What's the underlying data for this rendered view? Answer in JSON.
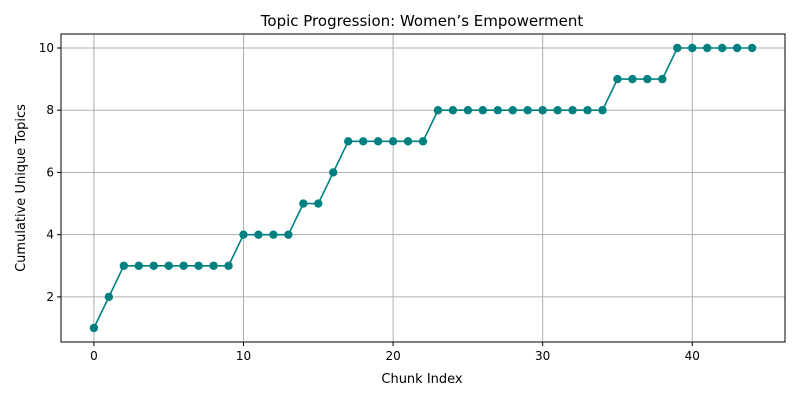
{
  "chart_data": {
    "type": "line",
    "title": "Topic Progression: Women’s Empowerment",
    "xlabel": "Chunk Index",
    "ylabel": "Cumulative Unique Topics",
    "xlim": [
      -2.2,
      46.2
    ],
    "ylim": [
      0.55,
      10.45
    ],
    "xticks": [
      "0",
      "10",
      "20",
      "30",
      "40"
    ],
    "yticks": [
      "2",
      "4",
      "6",
      "8",
      "10"
    ],
    "grid": true,
    "legend": "none",
    "marker": "circle",
    "color": "#008080",
    "series": [
      {
        "x": [
          0,
          1,
          2,
          3,
          4,
          5,
          6,
          7,
          8,
          9,
          10,
          11,
          12,
          13,
          14,
          15,
          16,
          17,
          18,
          19,
          20,
          21,
          22,
          23,
          24,
          25,
          26,
          27,
          28,
          29,
          30,
          31,
          32,
          33,
          34,
          35,
          36,
          37,
          38,
          39,
          40,
          41,
          42,
          43,
          44
        ],
        "values": [
          1,
          2,
          3,
          3,
          3,
          3,
          3,
          3,
          3,
          3,
          4,
          4,
          4,
          4,
          5,
          5,
          6,
          7,
          7,
          7,
          7,
          7,
          7,
          8,
          8,
          8,
          8,
          8,
          8,
          8,
          8,
          8,
          8,
          8,
          8,
          9,
          9,
          9,
          9,
          10,
          10,
          10,
          10,
          10,
          10
        ]
      }
    ]
  }
}
